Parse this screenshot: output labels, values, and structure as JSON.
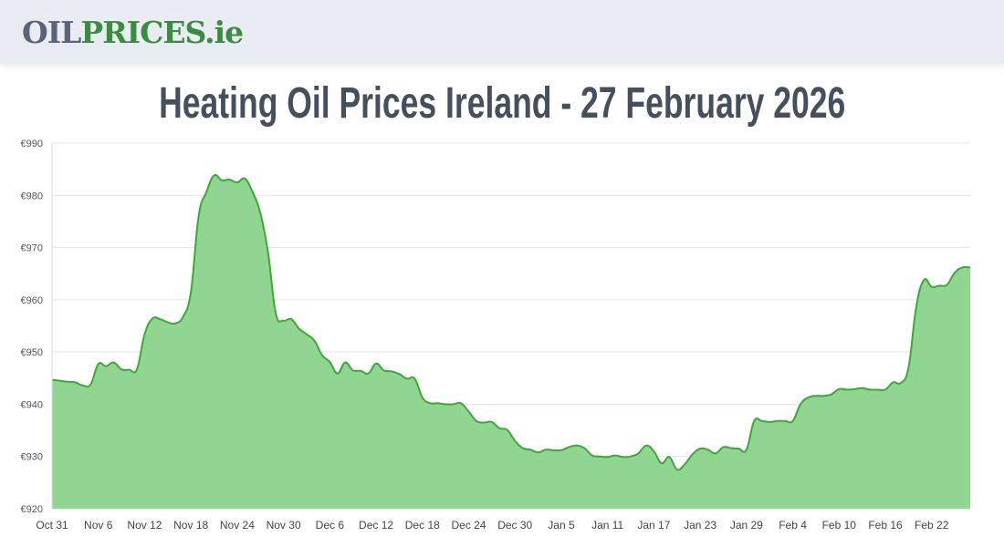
{
  "header": {
    "logo_part1": "OIL",
    "logo_part2": "PRICES.ie",
    "logo_colors": {
      "oil": "#5a6378",
      "prices": "#3a8c3f"
    }
  },
  "page_title": "Heating Oil Prices Ireland - 27 February 2026",
  "chart_data": {
    "type": "area",
    "title": "Heating Oil Prices Ireland - 27 February 2026",
    "xlabel": "",
    "ylabel": "",
    "ylim": [
      920,
      990
    ],
    "y_ticks": [
      920,
      930,
      940,
      950,
      960,
      970,
      980,
      990
    ],
    "y_tick_labels": [
      "€920",
      "€930",
      "€940",
      "€950",
      "€960",
      "€970",
      "€980",
      "€990"
    ],
    "x_tick_labels": [
      "Oct 31",
      "Nov 6",
      "Nov 12",
      "Nov 18",
      "Nov 24",
      "Nov 30",
      "Dec 6",
      "Dec 12",
      "Dec 18",
      "Dec 24",
      "Dec 30",
      "Jan 5",
      "Jan 11",
      "Jan 17",
      "Jan 23",
      "Jan 29",
      "Feb 4",
      "Feb 10",
      "Feb 16",
      "Feb 22"
    ],
    "x_tick_every_days": 6,
    "grid": true,
    "legend": "none",
    "colors": {
      "line": "#3aaa35",
      "fill": "#91d593",
      "grid": "#e3e3e3"
    },
    "x": [
      "2025-10-31",
      "2025-11-01",
      "2025-11-02",
      "2025-11-03",
      "2025-11-04",
      "2025-11-05",
      "2025-11-06",
      "2025-11-07",
      "2025-11-08",
      "2025-11-09",
      "2025-11-10",
      "2025-11-11",
      "2025-11-12",
      "2025-11-13",
      "2025-11-14",
      "2025-11-15",
      "2025-11-16",
      "2025-11-17",
      "2025-11-18",
      "2025-11-19",
      "2025-11-20",
      "2025-11-21",
      "2025-11-22",
      "2025-11-23",
      "2025-11-24",
      "2025-11-25",
      "2025-11-26",
      "2025-11-27",
      "2025-11-28",
      "2025-11-29",
      "2025-11-30",
      "2025-12-01",
      "2025-12-02",
      "2025-12-03",
      "2025-12-04",
      "2025-12-05",
      "2025-12-06",
      "2025-12-07",
      "2025-12-08",
      "2025-12-09",
      "2025-12-10",
      "2025-12-11",
      "2025-12-12",
      "2025-12-13",
      "2025-12-14",
      "2025-12-15",
      "2025-12-16",
      "2025-12-17",
      "2025-12-18",
      "2025-12-19",
      "2025-12-20",
      "2025-12-21",
      "2025-12-22",
      "2025-12-23",
      "2025-12-24",
      "2025-12-25",
      "2025-12-26",
      "2025-12-27",
      "2025-12-28",
      "2025-12-29",
      "2025-12-30",
      "2025-12-31",
      "2026-01-01",
      "2026-01-02",
      "2026-01-03",
      "2026-01-04",
      "2026-01-05",
      "2026-01-06",
      "2026-01-07",
      "2026-01-08",
      "2026-01-09",
      "2026-01-10",
      "2026-01-11",
      "2026-01-12",
      "2026-01-13",
      "2026-01-14",
      "2026-01-15",
      "2026-01-16",
      "2026-01-17",
      "2026-01-18",
      "2026-01-19",
      "2026-01-20",
      "2026-01-21",
      "2026-01-22",
      "2026-01-23",
      "2026-01-24",
      "2026-01-25",
      "2026-01-26",
      "2026-01-27",
      "2026-01-28",
      "2026-01-29",
      "2026-01-30",
      "2026-01-31",
      "2026-02-01",
      "2026-02-02",
      "2026-02-03",
      "2026-02-04",
      "2026-02-05",
      "2026-02-06",
      "2026-02-07",
      "2026-02-08",
      "2026-02-09",
      "2026-02-10",
      "2026-02-11",
      "2026-02-12",
      "2026-02-13",
      "2026-02-14",
      "2026-02-15",
      "2026-02-16",
      "2026-02-17",
      "2026-02-18",
      "2026-02-19",
      "2026-02-20",
      "2026-02-21",
      "2026-02-22",
      "2026-02-23",
      "2026-02-24",
      "2026-02-25",
      "2026-02-26",
      "2026-02-27"
    ],
    "values": [
      944.7,
      944.5,
      944.3,
      944.2,
      943.6,
      943.8,
      947.7,
      947.3,
      948.0,
      946.7,
      946.6,
      946.7,
      953.4,
      956.4,
      956.3,
      955.7,
      955.5,
      956.8,
      961.5,
      976.0,
      980.6,
      983.8,
      982.9,
      983.0,
      982.5,
      983.2,
      980.6,
      976.6,
      969.0,
      957.4,
      956.0,
      956.3,
      954.5,
      953.4,
      952.2,
      949.4,
      948.1,
      945.9,
      948.0,
      946.5,
      946.4,
      945.9,
      947.8,
      946.5,
      946.3,
      945.8,
      944.9,
      944.9,
      941.3,
      940.2,
      940.2,
      940.0,
      940.0,
      940.2,
      938.6,
      936.8,
      936.5,
      936.6,
      935.4,
      935.1,
      933.0,
      931.6,
      931.3,
      930.8,
      931.3,
      931.2,
      931.2,
      931.8,
      932.1,
      931.6,
      930.2,
      930.0,
      929.9,
      930.2,
      929.9,
      930.0,
      930.6,
      932.1,
      931.0,
      928.7,
      929.9,
      927.5,
      928.5,
      930.4,
      931.5,
      931.3,
      930.6,
      931.8,
      931.6,
      931.5,
      931.3,
      936.8,
      936.8,
      936.6,
      936.8,
      936.8,
      936.8,
      940.0,
      941.3,
      941.6,
      941.6,
      941.9,
      942.9,
      942.8,
      942.9,
      943.1,
      942.8,
      942.8,
      942.8,
      944.2,
      944.1,
      947.0,
      958.6,
      963.8,
      962.5,
      962.7,
      962.9,
      965.2,
      966.2,
      966.2
    ]
  }
}
